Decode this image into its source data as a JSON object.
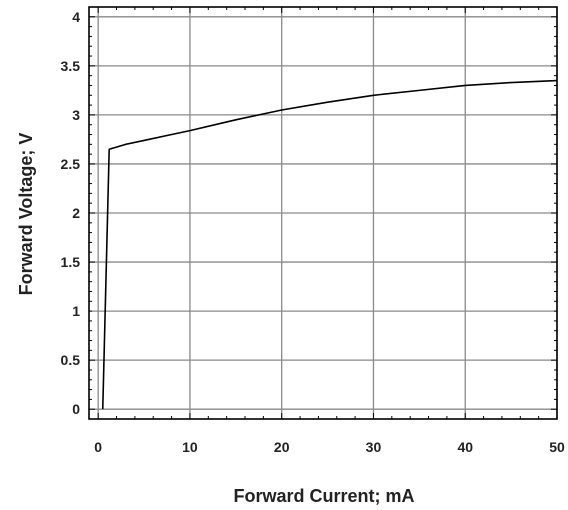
{
  "chart_data": {
    "type": "line",
    "xlabel": "Forward Current; mA",
    "ylabel": "Forward Voltage; V",
    "xlim": [
      -1,
      50
    ],
    "ylim": [
      -0.1,
      4.1
    ],
    "x_ticks": [
      0,
      10,
      20,
      30,
      40,
      50
    ],
    "x_tick_labels": [
      "0",
      "10",
      "20",
      "30",
      "40",
      "50"
    ],
    "y_ticks": [
      0,
      0.5,
      1,
      1.5,
      2,
      2.5,
      3,
      3.5,
      4
    ],
    "y_tick_labels": [
      "0",
      "0.5",
      "1",
      "1.5",
      "2",
      "2.5",
      "3",
      "3.5",
      "4"
    ],
    "grid": true,
    "series": [
      {
        "x": [
          0.5,
          1.2,
          3,
          5,
          7.5,
          10,
          15,
          20,
          25,
          30,
          35,
          40,
          45,
          50
        ],
        "y": [
          0,
          2.65,
          2.7,
          2.74,
          2.79,
          2.84,
          2.95,
          3.05,
          3.13,
          3.2,
          3.25,
          3.3,
          3.33,
          3.35
        ]
      }
    ],
    "colors": {
      "line": "#000000",
      "grid": "#8a8a8a",
      "frame": "#000000"
    }
  }
}
